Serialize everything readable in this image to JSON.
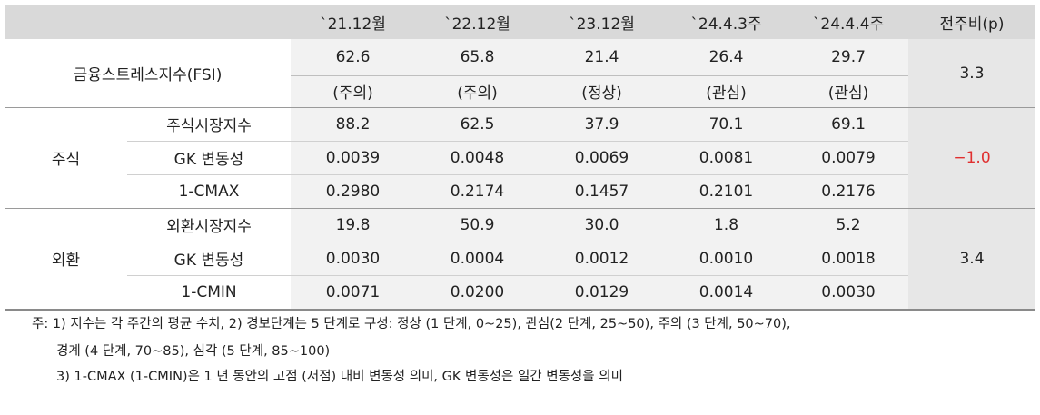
{
  "table": {
    "header": [
      "`21.12월",
      "`22.12월",
      "`23.12월",
      "`24.4.3주",
      "`24.4.4주",
      "전주비(p)"
    ],
    "fsi": {
      "label": "금융스트레스지수(FSI)",
      "values": [
        "62.6",
        "65.8",
        "21.4",
        "26.4",
        "29.7"
      ],
      "levels": [
        "(주의)",
        "(주의)",
        "(정상)",
        "(관심)",
        "(관심)"
      ],
      "change": "3.3"
    },
    "groups": [
      {
        "label": "주식",
        "change": "−1.0",
        "rows": [
          {
            "label": "주식시장지수",
            "values": [
              "88.2",
              "62.5",
              "37.9",
              "70.1",
              "69.1"
            ]
          },
          {
            "label": "GK 변동성",
            "values": [
              "0.0039",
              "0.0048",
              "0.0069",
              "0.0081",
              "0.0079"
            ]
          },
          {
            "label": "1-CMAX",
            "values": [
              "0.2980",
              "0.2174",
              "0.1457",
              "0.2101",
              "0.2176"
            ]
          }
        ]
      },
      {
        "label": "외환",
        "change": "3.4",
        "rows": [
          {
            "label": "외환시장지수",
            "values": [
              "19.8",
              "50.9",
              "30.0",
              "1.8",
              "5.2"
            ]
          },
          {
            "label": "GK 변동성",
            "values": [
              "0.0030",
              "0.0004",
              "0.0012",
              "0.0010",
              "0.0018"
            ]
          },
          {
            "label": "1-CMIN",
            "values": [
              "0.0071",
              "0.0200",
              "0.0129",
              "0.0014",
              "0.0030"
            ]
          }
        ]
      }
    ]
  },
  "notes": [
    "주: 1) 지수는 각 주간의 평균 수치, 2) 경보단계는 5 단계로 구성: 정상 (1 단계, 0~25), 관심(2 단계, 25~50), 주의 (3 단계, 50~70),",
    "경계 (4 단계, 70~85), 심각 (5 단계, 85~100)",
    "3) 1-CMAX (1-CMIN)은 1 년 동안의 고점 (저점) 대비 변동성 의미, GK 변동성은 일간 변동성을 의미"
  ]
}
